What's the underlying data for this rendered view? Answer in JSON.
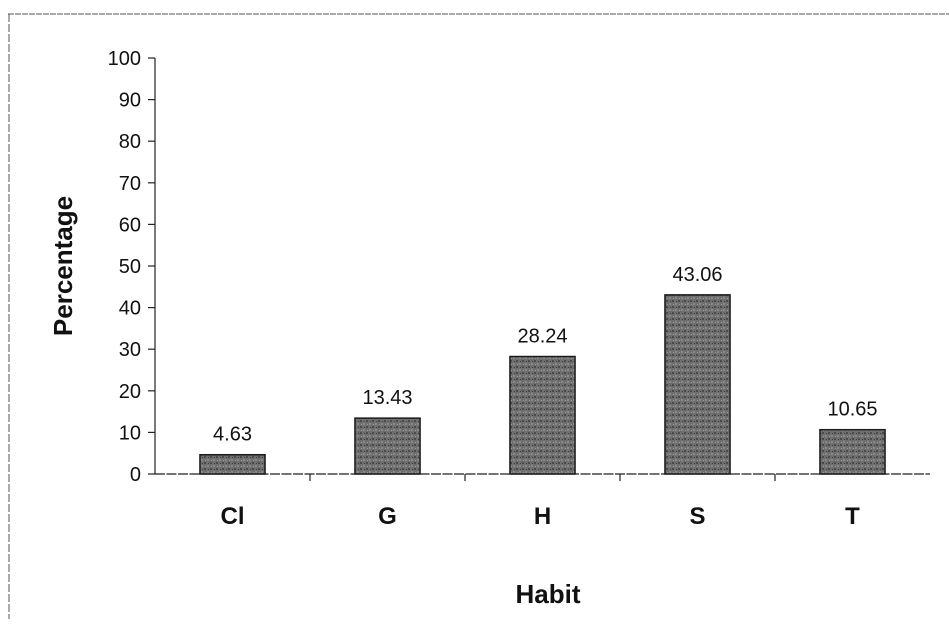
{
  "chart_data": {
    "type": "bar",
    "title": "",
    "xlabel": "Habit",
    "ylabel": "Percentage",
    "categories": [
      "Cl",
      "G",
      "H",
      "S",
      "T"
    ],
    "values": [
      4.63,
      13.43,
      28.24,
      43.06,
      10.65
    ],
    "data_labels": [
      "4.63",
      "13.43",
      "28.24",
      "43.06",
      "10.65"
    ],
    "yticks": [
      "0",
      "10",
      "20",
      "30",
      "40",
      "50",
      "60",
      "70",
      "80",
      "90",
      "100"
    ],
    "ylim": [
      0,
      100
    ],
    "grid": false,
    "legend": "none",
    "bar_color": "#6e6e6e"
  }
}
